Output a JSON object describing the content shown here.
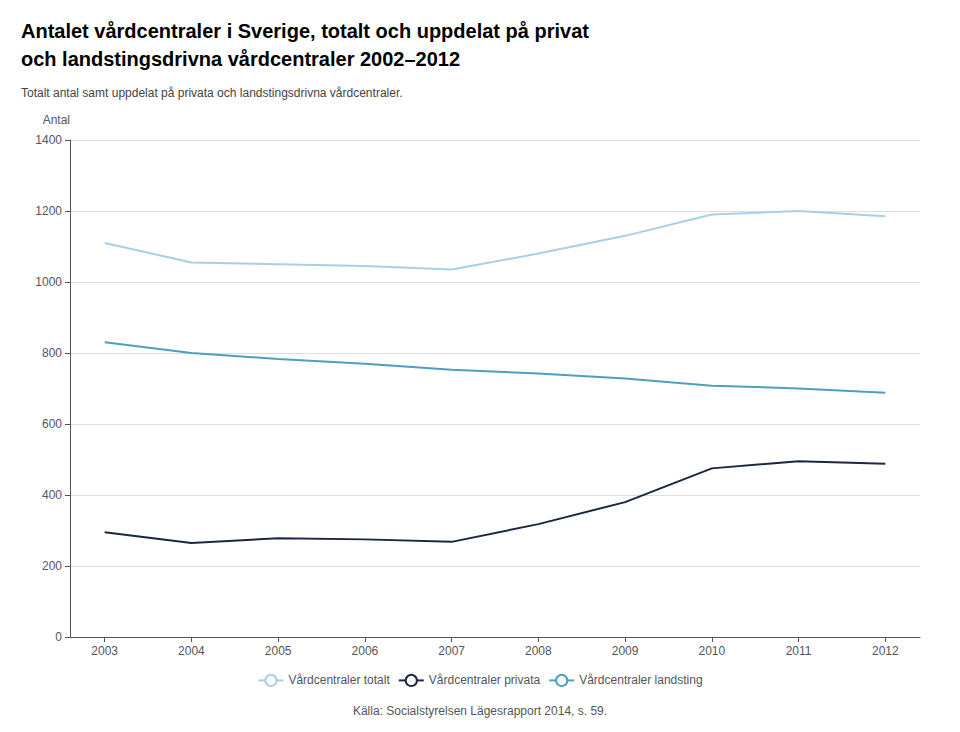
{
  "chart_data": {
    "type": "line",
    "title": "Antalet vårdcentraler i Sverige, totalt och uppdelat på privat\noch landstingsdrivna vårdcentraler 2002–2012",
    "subtitle": "Totalt antal samt uppdelat på privata och landstingsdrivna vårdcentraler.",
    "ylabel": "Antal",
    "annotations": [
      "Källa: Socialstyrelsen Lägesrapport 2014, s. 59."
    ],
    "x": [
      2003,
      2004,
      2005,
      2006,
      2007,
      2008,
      2009,
      2010,
      2011,
      2012
    ],
    "series": [
      {
        "name": "Vårdcentraler totalt",
        "color": "#aacde8",
        "values": [
          1110,
          1055,
          1050,
          1045,
          1035,
          1080,
          1130,
          1190,
          1200,
          1185
        ]
      },
      {
        "name": "Vårdcentraler privata",
        "color": "#1a2744",
        "values": [
          295,
          265,
          278,
          275,
          268,
          318,
          380,
          475,
          495,
          488
        ]
      },
      {
        "name": "Vårdcentraler landsting",
        "color": "#4e9ec2",
        "values": [
          830,
          800,
          783,
          770,
          753,
          742,
          728,
          708,
          700,
          688
        ]
      }
    ],
    "xlim": [
      2002.6,
      2012.4
    ],
    "xticks": [
      2003,
      2004,
      2005,
      2006,
      2007,
      2008,
      2009,
      2010,
      2011,
      2012
    ],
    "ylim": [
      0,
      1400
    ],
    "yticks": [
      0,
      200,
      400,
      600,
      800,
      1000,
      1200,
      1400
    ],
    "grid": true,
    "legend": "bottom"
  }
}
